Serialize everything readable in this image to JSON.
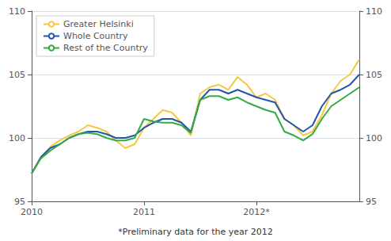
{
  "chart_data": {
    "type": "line",
    "categories": [
      "2010",
      null,
      null,
      null,
      null,
      null,
      null,
      null,
      null,
      null,
      null,
      null,
      "2011",
      null,
      null,
      null,
      null,
      null,
      null,
      null,
      null,
      null,
      null,
      null,
      "2012*",
      null,
      null,
      null,
      null,
      null,
      null,
      null,
      null,
      null,
      null,
      null
    ],
    "series": [
      {
        "name": "Greater Helsinki",
        "color": "#f5c842",
        "values": [
          97.2,
          98.5,
          99.3,
          99.8,
          100.2,
          100.5,
          101.0,
          100.8,
          100.5,
          99.8,
          99.2,
          99.5,
          100.8,
          101.5,
          102.2,
          102.0,
          101.2,
          100.2,
          103.5,
          104.0,
          104.2,
          103.8,
          104.8,
          104.2,
          103.2,
          103.5,
          103.0,
          101.5,
          101.0,
          100.2,
          100.5,
          101.8,
          103.5,
          104.5,
          105.0,
          106.2
        ]
      },
      {
        "name": "Whole Country",
        "color": "#2255aa",
        "values": [
          97.2,
          98.5,
          99.2,
          99.5,
          100.0,
          100.3,
          100.5,
          100.5,
          100.3,
          100.0,
          100.0,
          100.2,
          100.8,
          101.2,
          101.5,
          101.5,
          101.2,
          100.5,
          103.0,
          103.8,
          103.8,
          103.5,
          103.8,
          103.5,
          103.2,
          103.0,
          102.8,
          101.5,
          101.0,
          100.5,
          101.0,
          102.5,
          103.5,
          103.8,
          104.2,
          105.0
        ]
      },
      {
        "name": "Rest of the Country",
        "color": "#33aa44",
        "values": [
          97.2,
          98.4,
          99.0,
          99.5,
          100.0,
          100.3,
          100.4,
          100.3,
          100.0,
          99.8,
          99.8,
          100.0,
          101.5,
          101.3,
          101.2,
          101.2,
          101.0,
          100.4,
          103.0,
          103.3,
          103.3,
          103.0,
          103.2,
          102.8,
          102.5,
          102.2,
          102.0,
          100.5,
          100.2,
          99.8,
          100.3,
          101.5,
          102.5,
          103.0,
          103.5,
          104.0
        ]
      }
    ],
    "ylim": [
      95,
      110
    ],
    "yticks": [
      95,
      100,
      105,
      110
    ],
    "y2lim": [
      95,
      110
    ],
    "y2ticks": [
      95,
      100,
      105,
      110
    ],
    "grid": "y",
    "legend": "upper left",
    "annotations": [
      "*Preliminary data for the year 2012"
    ]
  }
}
